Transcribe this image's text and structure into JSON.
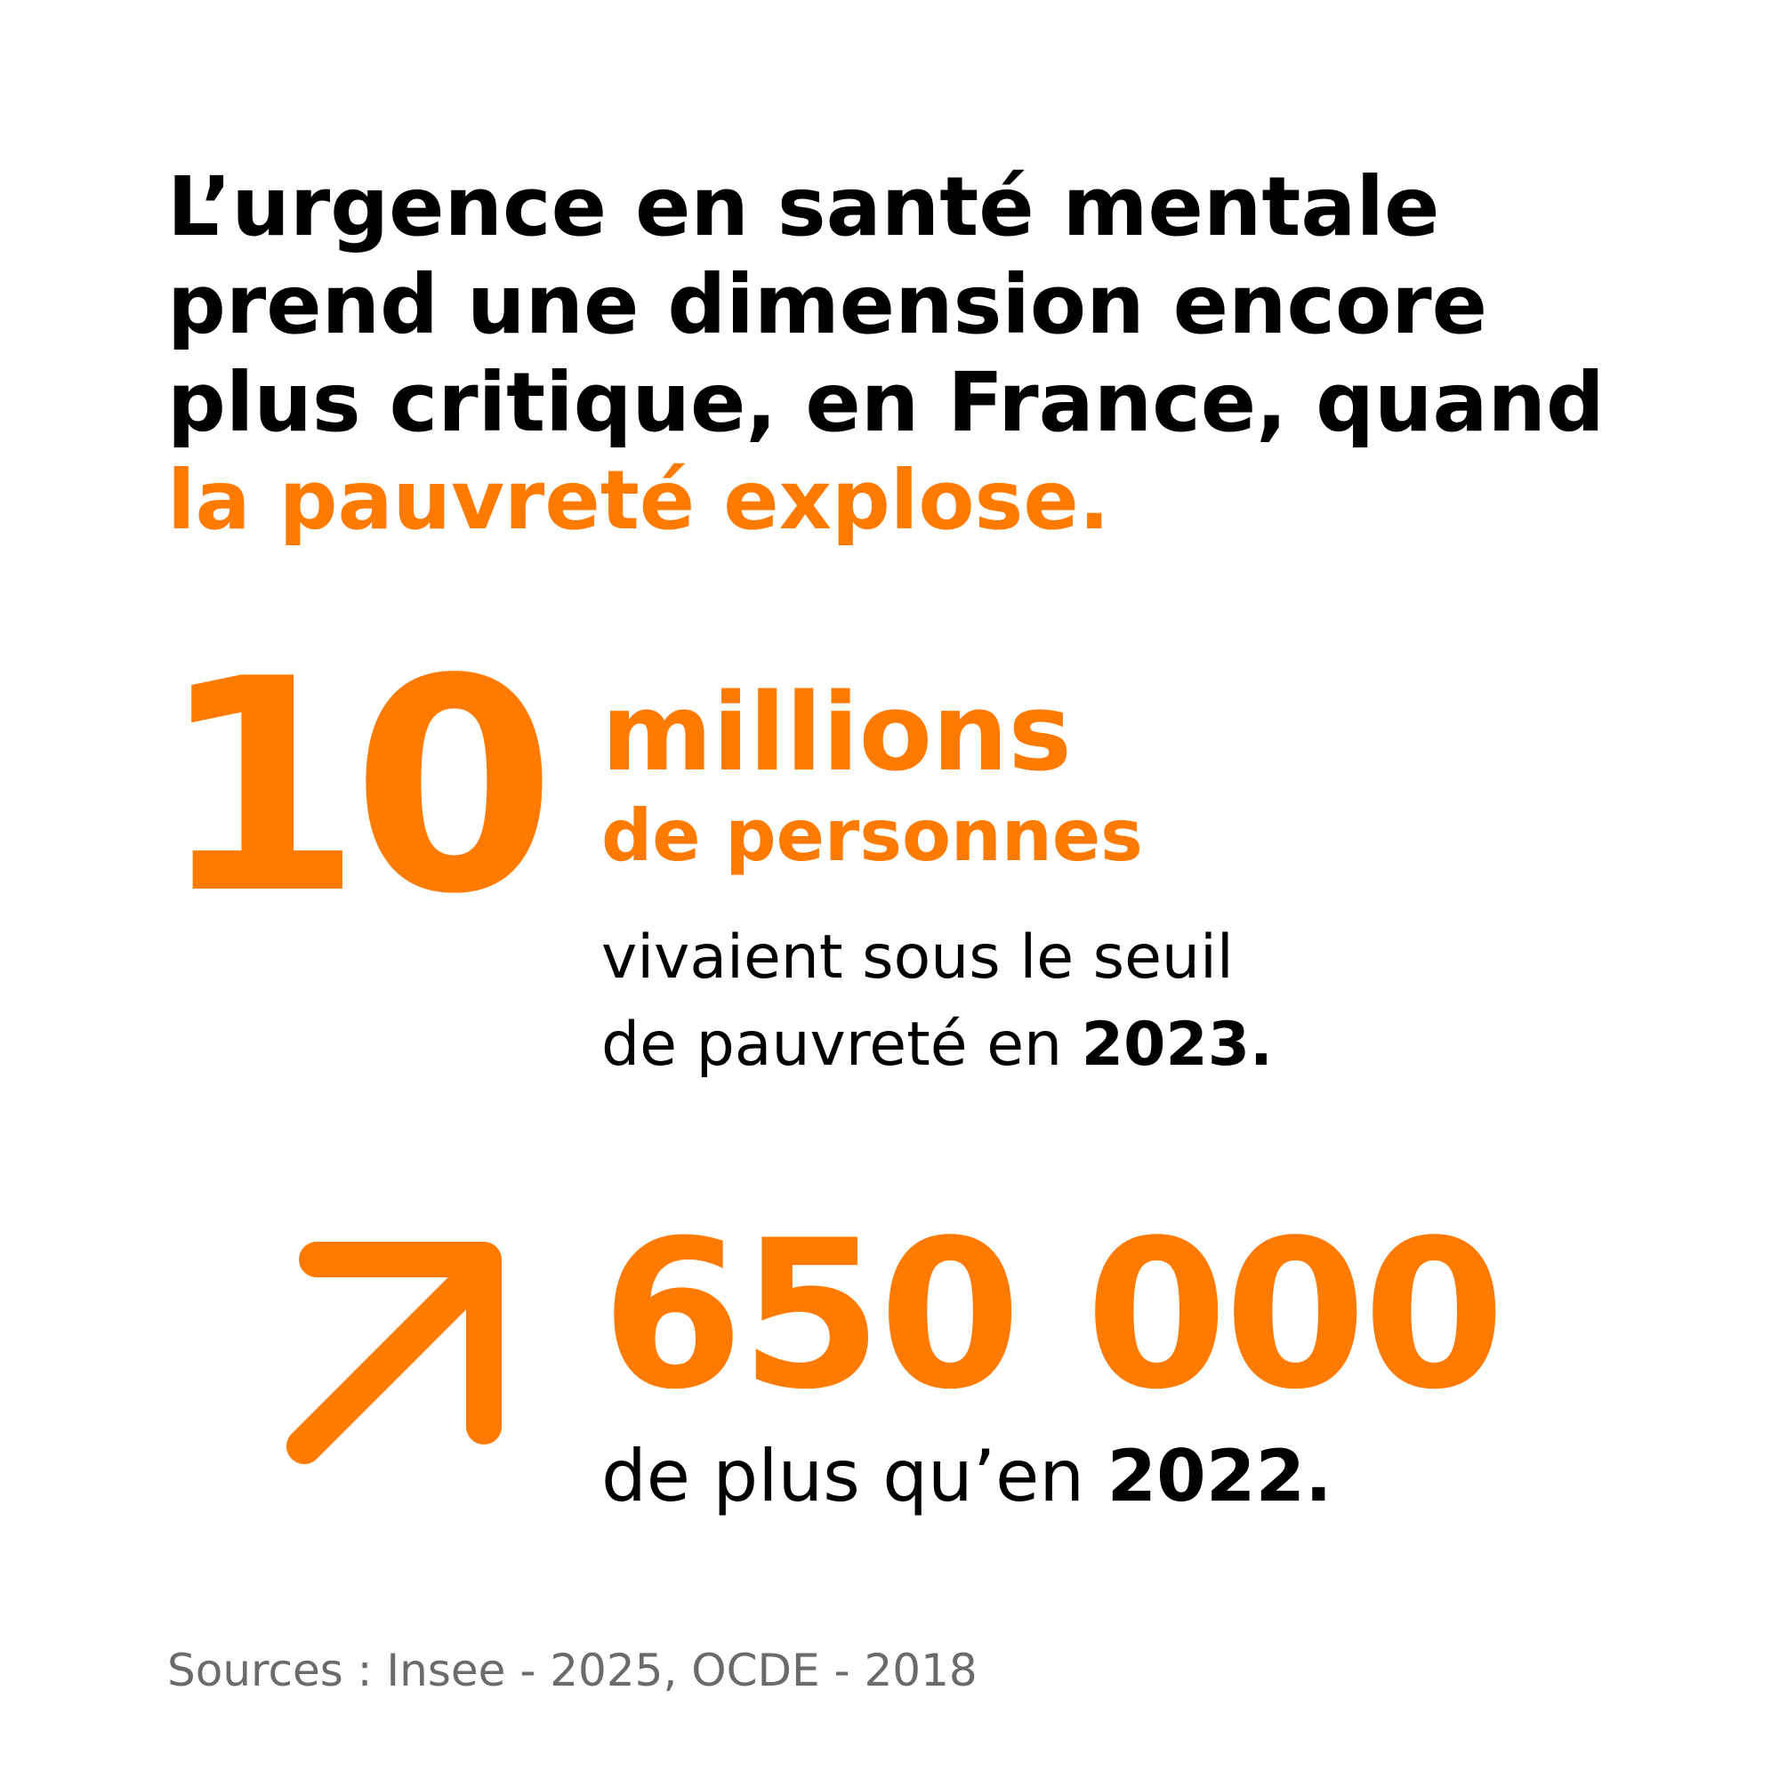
{
  "headline": {
    "line1": "L’urgence en santé mentale",
    "line2": "prend une dimension encore",
    "line3": "plus critique, en France, quand",
    "accent": "la pauvreté explose."
  },
  "stat1": {
    "number": "10",
    "unit": "millions",
    "subunit": "de personnes",
    "desc_line1": "vivaient sous le seuil",
    "desc_line2_prefix": "de pauvreté en ",
    "desc_year": "2023."
  },
  "stat2": {
    "icon": "arrow-up-right-icon",
    "number": "650 000",
    "desc_prefix": "de plus qu’en ",
    "desc_year": "2022."
  },
  "sources": "Sources : Insee - 2025, OCDE - 2018",
  "colors": {
    "accent": "#FF7A00",
    "text": "#000000",
    "muted": "#6b6b6b",
    "background": "#FFFFFF"
  }
}
